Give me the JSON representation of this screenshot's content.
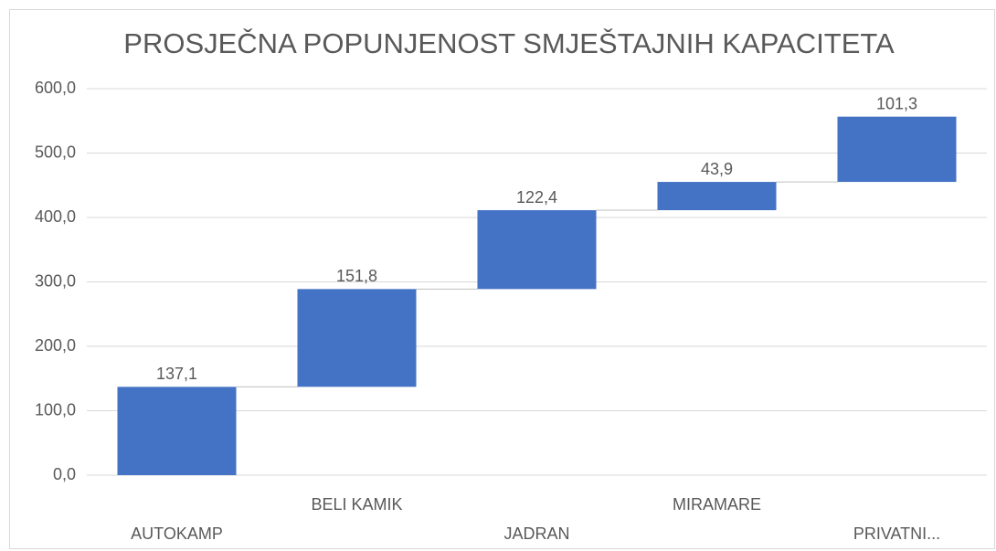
{
  "chart_data": {
    "type": "waterfall",
    "title": "PROSJEČNA POPUNJENOST SMJEŠTAJNIH KAPACITETA",
    "categories": [
      "AUTOKAMP",
      "BELI KAMIK",
      "JADRAN",
      "MIRAMARE",
      "PRIVATNI..."
    ],
    "values": [
      137.1,
      151.8,
      122.4,
      43.9,
      101.3
    ],
    "value_labels": [
      "137,1",
      "151,8",
      "122,4",
      "43,9",
      "101,3"
    ],
    "color": "#4472c4",
    "ylim": [
      0,
      600
    ],
    "yticks": [
      {
        "value": 0,
        "label": "0,0"
      },
      {
        "value": 100,
        "label": "100,0"
      },
      {
        "value": 200,
        "label": "200,0"
      },
      {
        "value": 300,
        "label": "300,0"
      },
      {
        "value": 400,
        "label": "400,0"
      },
      {
        "value": 500,
        "label": "500,0"
      },
      {
        "value": 600,
        "label": "600,0"
      }
    ],
    "grid": true
  }
}
